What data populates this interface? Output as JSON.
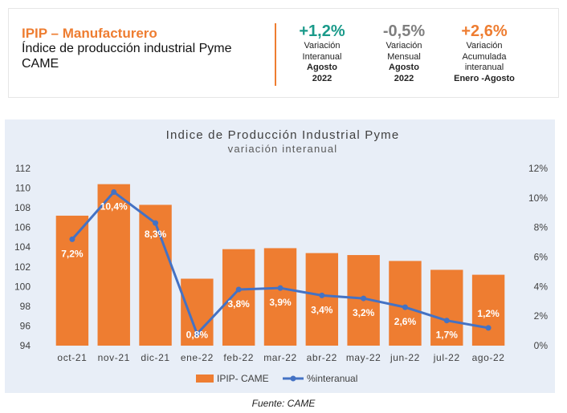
{
  "header": {
    "title": "IPIP – Manufacturero",
    "subtitle_line1": "Índice de producción industrial Pyme",
    "subtitle_line2": "CAME",
    "metrics": [
      {
        "value": "+1,2%",
        "color": "#1a9a8a",
        "lines": [
          "Variación",
          "Interanual",
          "Agosto",
          "2022"
        ]
      },
      {
        "value": "-0,5%",
        "color": "#7f7f7f",
        "lines": [
          "Variación",
          "Mensual",
          "Agosto",
          "2022"
        ]
      },
      {
        "value": "+2,6%",
        "color": "#ee7d31",
        "lines": [
          "Variación",
          "Acumulada",
          "interanual",
          "Enero -Agosto"
        ]
      }
    ]
  },
  "chart_data": {
    "type": "bar",
    "title": "Indice de Producción Industrial Pyme",
    "subtitle": "variación interanual",
    "categories": [
      "oct-21",
      "nov-21",
      "dic-21",
      "ene-22",
      "feb-22",
      "mar-22",
      "abr-22",
      "may-22",
      "jun-22",
      "jul-22",
      "ago-22"
    ],
    "series": [
      {
        "name": "IPIP- CAME",
        "type": "bar",
        "axis": "left",
        "color": "#ee7d31",
        "values": [
          107.2,
          110.4,
          108.3,
          100.8,
          103.8,
          103.9,
          103.4,
          103.2,
          102.6,
          101.7,
          101.2
        ]
      },
      {
        "name": "%interanual",
        "type": "line",
        "axis": "right",
        "color": "#4472c4",
        "values": [
          7.2,
          10.4,
          8.3,
          0.8,
          3.8,
          3.9,
          3.4,
          3.2,
          2.6,
          1.7,
          1.2
        ],
        "labels": [
          "7,2%",
          "10,4%",
          "8,3%",
          "0,8%",
          "3,8%",
          "3,9%",
          "3,4%",
          "3,2%",
          "2,6%",
          "1,7%",
          "1,2%"
        ]
      }
    ],
    "y_left": {
      "min": 94,
      "max": 112,
      "ticks": [
        "94",
        "96",
        "98",
        "100",
        "102",
        "104",
        "106",
        "108",
        "110",
        "112"
      ]
    },
    "y_right": {
      "min": 0,
      "max": 12,
      "ticks": [
        "0%",
        "2%",
        "4%",
        "6%",
        "8%",
        "10%",
        "12%"
      ]
    },
    "grid": false,
    "legend_position": "bottom"
  },
  "footer": {
    "source": "Fuente: CAME"
  }
}
